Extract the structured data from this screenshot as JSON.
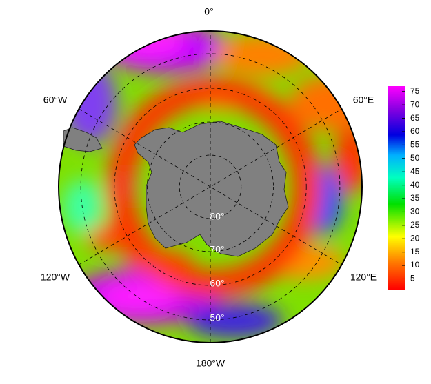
{
  "meridians": [
    "0°",
    "60°E",
    "120°E",
    "180°W",
    "120°W",
    "60°W"
  ],
  "parallels": [
    "80°",
    "70°",
    "60°",
    "50°"
  ],
  "colorbar": {
    "range": [
      1,
      77
    ],
    "ticks": [
      5,
      10,
      15,
      20,
      25,
      30,
      35,
      40,
      45,
      50,
      55,
      60,
      65,
      70,
      75
    ]
  }
}
